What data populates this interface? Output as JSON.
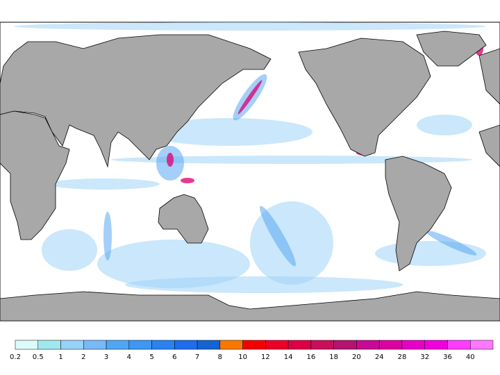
{
  "colorbar": {
    "levels": [
      0.2,
      0.5,
      1,
      2,
      3,
      4,
      5,
      6,
      7,
      8,
      10,
      12,
      14,
      16,
      18,
      20,
      24,
      28,
      32,
      36,
      40
    ],
    "colors": [
      "#dcfcfc",
      "#a0e8f0",
      "#96d2fa",
      "#78b9fa",
      "#50a5f5",
      "#3c97f5",
      "#2882f0",
      "#1e6eeb",
      "#1464d2",
      "#fa7800",
      "#f50000",
      "#eb0028",
      "#dc0046",
      "#c8105a",
      "#b4146e",
      "#c80a96",
      "#dc00a0",
      "#e600c8",
      "#f000dc",
      "#ff3cff",
      "#ff78ff"
    ]
  }
}
